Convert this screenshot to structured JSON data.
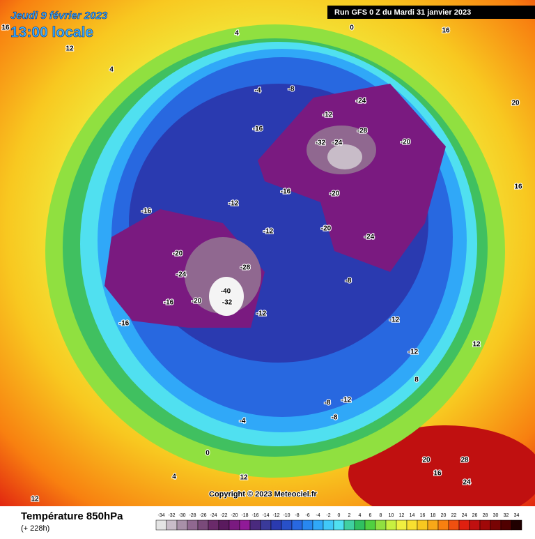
{
  "header": {
    "valid_date": "Jeudi 9 février 2023",
    "local_time": "13:00 locale",
    "run": "Run GFS 0 Z du Mardi 31 janvier 2023"
  },
  "footer": {
    "field": "Température 850hPa",
    "lead": "(+ 228h)",
    "copyright": "Copyright © 2023 Meteociel.fr"
  },
  "colorbar": {
    "ticks": [
      -34,
      -32,
      -30,
      -28,
      -26,
      -24,
      -22,
      -20,
      -18,
      -16,
      -14,
      -12,
      -10,
      -8,
      -6,
      -4,
      -2,
      0,
      2,
      4,
      6,
      8,
      10,
      12,
      14,
      16,
      18,
      20,
      22,
      24,
      26,
      28,
      30,
      32,
      34
    ],
    "colors": [
      "#e4e4e4",
      "#c8bcc8",
      "#a890a8",
      "#906890",
      "#7a4a7a",
      "#6a2a6a",
      "#5a1a5e",
      "#7a1a80",
      "#901a98",
      "#4a2a7e",
      "#3a3a9a",
      "#2a3ab0",
      "#2850c8",
      "#2868e0",
      "#2888f0",
      "#30a8f8",
      "#40c8f8",
      "#50e0f0",
      "#40d0a0",
      "#30c060",
      "#50d040",
      "#90e040",
      "#c8f040",
      "#f0f040",
      "#f8e030",
      "#f8c820",
      "#f8a818",
      "#f88010",
      "#f05010",
      "#e02010",
      "#c01010",
      "#a00808",
      "#780404",
      "#500000",
      "#200000"
    ]
  },
  "contour_labels": [
    "16",
    "4",
    "0",
    "16",
    "12",
    "4",
    "-4",
    "-8",
    "-24",
    "-12",
    "-16",
    "-28",
    "-20",
    "-24",
    "-32",
    "-16",
    "-20",
    "-12",
    "-16",
    "-24",
    "-20",
    "-12",
    "-20",
    "-28",
    "-24",
    "-20",
    "-16",
    "-16",
    "-12",
    "-8",
    "-12",
    "-12",
    "-8",
    "-12",
    "-8",
    "-4",
    "0",
    "12",
    "20",
    "28",
    "24",
    "16",
    "-40",
    "-32",
    "20",
    "16",
    "12",
    "8",
    "4",
    "12"
  ]
}
